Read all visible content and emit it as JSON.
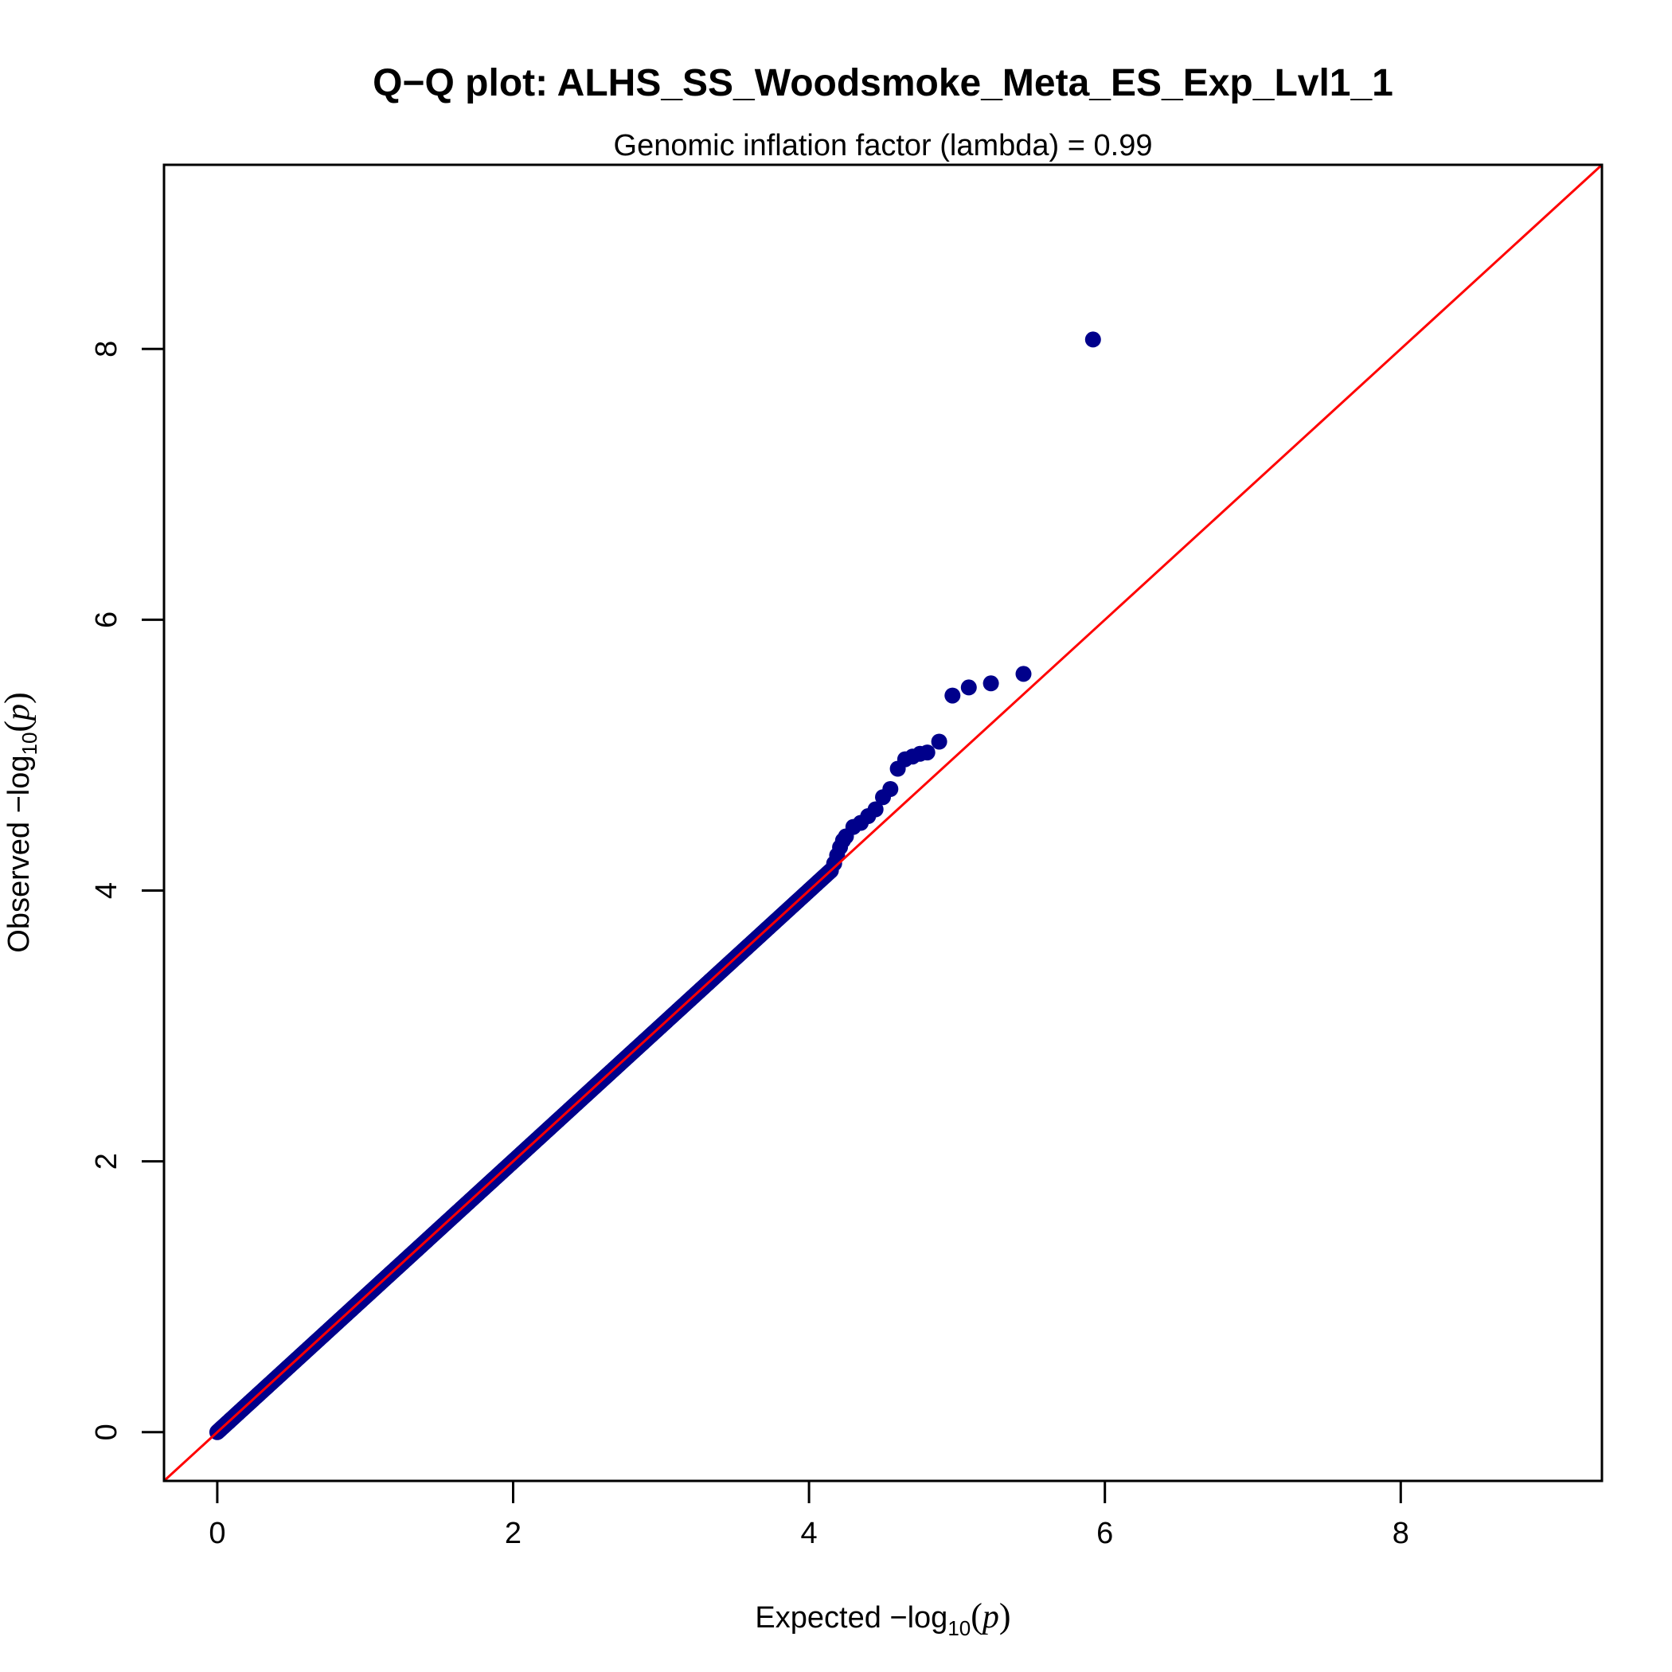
{
  "chart_data": {
    "type": "scatter",
    "title": "Q−Q plot: ALHS_SS_Woodsmoke_Meta_ES_Exp_Lvl1_1",
    "subtitle": "Genomic inflation factor (lambda) = 0.99",
    "xlabel": {
      "prefix": "Expected  −log",
      "sub": "10",
      "open": "(",
      "var": "p",
      "close": ")"
    },
    "ylabel": {
      "prefix": "Observed  −log",
      "sub": "10",
      "open": "(",
      "var": "p",
      "close": ")"
    },
    "xlim": [
      -0.36,
      9.36
    ],
    "ylim": [
      -0.36,
      9.36
    ],
    "x_ticks": [
      0,
      2,
      4,
      6,
      8
    ],
    "y_ticks": [
      0,
      2,
      4,
      6,
      8
    ],
    "x_tick_labels": [
      "0",
      "2",
      "4",
      "6",
      "8"
    ],
    "y_tick_labels": [
      "0",
      "2",
      "4",
      "6",
      "8"
    ],
    "reference_line": {
      "slope": 1,
      "intercept": 0,
      "color": "#ff0000"
    },
    "point_color": "#00008b",
    "bulk_points": {
      "x_from": 0,
      "x_to": 4.15,
      "y_from": 0,
      "y_to": 4.15,
      "step": 0.004
    },
    "series": [
      {
        "x": [
          4.17,
          4.19,
          4.21,
          4.23,
          4.25,
          4.3,
          4.35,
          4.4,
          4.45,
          4.5,
          4.55,
          4.6,
          4.65,
          4.7,
          4.75,
          4.8,
          4.88,
          4.97,
          5.08,
          5.23,
          5.45,
          5.92
        ],
        "y": [
          4.2,
          4.26,
          4.32,
          4.37,
          4.4,
          4.47,
          4.5,
          4.55,
          4.6,
          4.69,
          4.75,
          4.9,
          4.97,
          4.99,
          5.01,
          5.02,
          5.1,
          5.44,
          5.5,
          5.53,
          5.6,
          8.07
        ]
      }
    ]
  }
}
